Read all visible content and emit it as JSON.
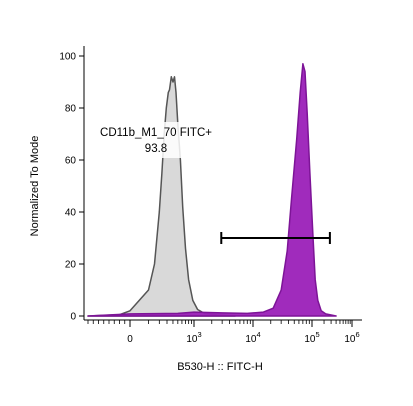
{
  "chart_data": {
    "type": "histogram-overlay",
    "xlabel": "B530-H :: FITC-H",
    "ylabel": "Normalized To Mode",
    "ylim": [
      0,
      100
    ],
    "y_ticks": [
      0,
      20,
      40,
      60,
      80,
      100
    ],
    "x_axis_scale": "biexponential",
    "x_tick_labels": [
      {
        "base": "0",
        "exp": "",
        "value": 0
      },
      {
        "base": "10",
        "exp": "3",
        "value": 1000
      },
      {
        "base": "10",
        "exp": "4",
        "value": 10000
      },
      {
        "base": "10",
        "exp": "5",
        "value": 100000
      },
      {
        "base": "10",
        "exp": "6",
        "value": 1000000
      }
    ],
    "series": [
      {
        "fill": "#d9d9d9",
        "stroke": "#555555",
        "points": [
          [
            -800,
            0
          ],
          [
            -200,
            0.5
          ],
          [
            0,
            2
          ],
          [
            100,
            10
          ],
          [
            150,
            20
          ],
          [
            200,
            40
          ],
          [
            230,
            55
          ],
          [
            260,
            70
          ],
          [
            290,
            80
          ],
          [
            320,
            86
          ],
          [
            340,
            87
          ],
          [
            370,
            92
          ],
          [
            400,
            90
          ],
          [
            430,
            92
          ],
          [
            460,
            86
          ],
          [
            500,
            74
          ],
          [
            560,
            60
          ],
          [
            620,
            42
          ],
          [
            700,
            26
          ],
          [
            800,
            14
          ],
          [
            950,
            6
          ],
          [
            1150,
            2.5
          ],
          [
            1500,
            1
          ],
          [
            2500,
            0.4
          ],
          [
            5000,
            0
          ]
        ]
      },
      {
        "fill": "#9b20b8",
        "stroke": "#7d1497",
        "points": [
          [
            -800,
            0
          ],
          [
            0,
            0.8
          ],
          [
            500,
            1
          ],
          [
            1000,
            1.5
          ],
          [
            3000,
            1.2
          ],
          [
            8000,
            1
          ],
          [
            15000,
            1.5
          ],
          [
            22000,
            3
          ],
          [
            30000,
            10
          ],
          [
            38000,
            25
          ],
          [
            45000,
            45
          ],
          [
            55000,
            68
          ],
          [
            63000,
            86
          ],
          [
            70000,
            97
          ],
          [
            76000,
            94
          ],
          [
            83000,
            78
          ],
          [
            92000,
            55
          ],
          [
            105000,
            32
          ],
          [
            120000,
            14
          ],
          [
            140000,
            6
          ],
          [
            170000,
            2
          ],
          [
            220000,
            0.8
          ],
          [
            400000,
            0
          ]
        ]
      }
    ],
    "gate": {
      "name": "CD11b_M1_70 FITC+",
      "value": "93.8",
      "x_min": 2900,
      "x_max": 280000,
      "y_level": 30
    }
  }
}
